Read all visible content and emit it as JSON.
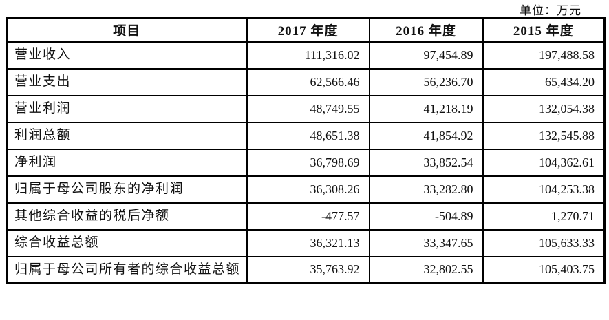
{
  "unit_label": "单位：万元",
  "colors": {
    "border": "#000000",
    "text": "#111111",
    "background": "#ffffff"
  },
  "table": {
    "columns": [
      "项目",
      "2017 年度",
      "2016 年度",
      "2015 年度"
    ],
    "rows": [
      {
        "label": "营业收入",
        "y2017": "111,316.02",
        "y2016": "97,454.89",
        "y2015": "197,488.58"
      },
      {
        "label": "营业支出",
        "y2017": "62,566.46",
        "y2016": "56,236.70",
        "y2015": "65,434.20"
      },
      {
        "label": "营业利润",
        "y2017": "48,749.55",
        "y2016": "41,218.19",
        "y2015": "132,054.38"
      },
      {
        "label": "利润总额",
        "y2017": "48,651.38",
        "y2016": "41,854.92",
        "y2015": "132,545.88"
      },
      {
        "label": "净利润",
        "y2017": "36,798.69",
        "y2016": "33,852.54",
        "y2015": "104,362.61"
      },
      {
        "label": "归属于母公司股东的净利润",
        "y2017": "36,308.26",
        "y2016": "33,282.80",
        "y2015": "104,253.38"
      },
      {
        "label": "其他综合收益的税后净额",
        "y2017": "-477.57",
        "y2016": "-504.89",
        "y2015": "1,270.71"
      },
      {
        "label": "综合收益总额",
        "y2017": "36,321.13",
        "y2016": "33,347.65",
        "y2015": "105,633.33"
      },
      {
        "label": "归属于母公司所有者的综合收益总额",
        "y2017": "35,763.92",
        "y2016": "32,802.55",
        "y2015": "105,403.75"
      }
    ]
  }
}
